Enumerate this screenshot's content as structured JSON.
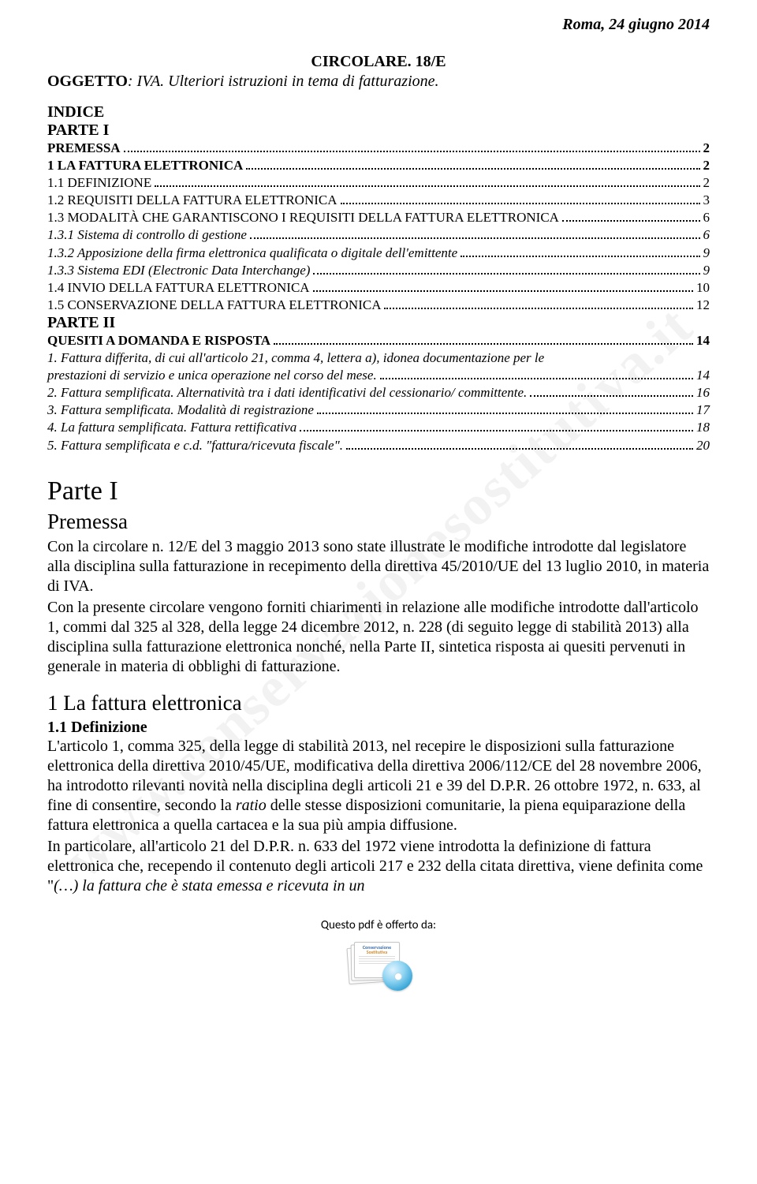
{
  "meta": {
    "date_line": "Roma, 24 giugno 2014",
    "circolare_title": "CIRCOLARE. 18/E",
    "oggetto_label": "OGGETTO",
    "oggetto_text": ": IVA. Ulteriori istruzioni in tema di fatturazione.",
    "watermark": "www.conservazionesostitutiva.it"
  },
  "indice": {
    "heading": "INDICE",
    "parte1_label": "PARTE I",
    "items_p1": [
      {
        "label": "PREMESSA",
        "page": "2",
        "style": "sc bold"
      },
      {
        "label": "1 LA FATTURA ELETTRONICA",
        "page": "2",
        "style": "sc bold"
      },
      {
        "label": "1.1 DEFINIZIONE",
        "page": "2",
        "style": "sc"
      },
      {
        "label": "1.2 REQUISITI DELLA FATTURA ELETTRONICA",
        "page": "3",
        "style": "sc"
      },
      {
        "label": "1.3 MODALITÀ CHE GARANTISCONO I REQUISITI DELLA FATTURA ELETTRONICA",
        "page": "6",
        "style": "sc"
      },
      {
        "label": "1.3.1 Sistema di controllo di gestione",
        "page": "6",
        "style": "italic"
      },
      {
        "label": "1.3.2 Apposizione della firma elettronica qualificata o digitale dell'emittente",
        "page": "9",
        "style": "italic"
      },
      {
        "label": "1.3.3 Sistema EDI (Electronic Data Interchange)",
        "page": "9",
        "style": "italic"
      },
      {
        "label": "1.4 INVIO DELLA FATTURA ELETTRONICA",
        "page": "10",
        "style": "sc"
      },
      {
        "label": "1.5 CONSERVAZIONE DELLA FATTURA ELETTRONICA",
        "page": "12",
        "style": "sc"
      }
    ],
    "parte2_label": "PARTE II",
    "items_p2_head": {
      "label": "QUESITI A DOMANDA E RISPOSTA",
      "page": "14",
      "style": "sc bold"
    },
    "items_p2": [
      {
        "label_line1": "1. Fattura differita, di cui all'articolo 21, comma 4, lettera a), idonea documentazione per le",
        "label_line2": "prestazioni di servizio e unica operazione nel corso del mese.",
        "page": "14",
        "style": "italic"
      },
      {
        "label": "2. Fattura semplificata. Alternatività tra i dati identificativi del cessionario/ committente.",
        "page": "16",
        "style": "italic"
      },
      {
        "label": "3. Fattura semplificata. Modalità di registrazione",
        "page": "17",
        "style": "italic"
      },
      {
        "label": "4. La fattura semplificata. Fattura rettificativa",
        "page": "18",
        "style": "italic"
      },
      {
        "label": "5. Fattura semplificata e c.d. \"fattura/ricevuta fiscale\".",
        "page": "20",
        "style": "italic"
      }
    ]
  },
  "body": {
    "parte1_title": "Parte I",
    "premessa_title": "Premessa",
    "premessa_paragraphs": [
      "Con la circolare n. 12/E del 3 maggio 2013 sono state illustrate le modifiche introdotte dal legislatore alla disciplina sulla fatturazione in recepimento della direttiva 45/2010/UE del 13 luglio 2010, in materia di IVA.",
      "Con la presente circolare vengono forniti chiarimenti in relazione alle modifiche introdotte dall'articolo 1, commi dal 325 al 328, della legge 24 dicembre 2012, n. 228 (di seguito legge di stabilità 2013) alla disciplina sulla fatturazione elettronica nonché, nella Parte II, sintetica risposta ai quesiti pervenuti in generale in materia di obblighi di fatturazione."
    ],
    "sec1_title": "1 La fattura elettronica",
    "sec11_title": "1.1 Definizione",
    "sec11_text_parts": {
      "p1": "L'articolo 1, comma 325, della legge di stabilità 2013, nel recepire le disposizioni sulla fatturazione elettronica della direttiva 2010/45/UE, modificativa della direttiva 2006/112/CE del 28 novembre 2006, ha introdotto rilevanti novità nella disciplina degli articoli 21 e 39 del D.P.R. 26 ottobre 1972, n. 633, al fine di consentire, secondo la ",
      "p1_italic": "ratio",
      "p1_tail": " delle stesse disposizioni comunitarie, la piena equiparazione della fattura elettronica a quella cartacea e la sua più ampia diffusione.",
      "p2": "In particolare, all'articolo 21 del D.P.R. n. 633 del 1972 viene introdotta la definizione di fattura elettronica che, recependo il contenuto degli articoli 217 e 232 della citata direttiva, viene definita come \"",
      "p2_italic": "(…) la fattura che è stata emessa e ricevuta in un"
    }
  },
  "footer": {
    "text": "Questo pdf è offerto da:",
    "card_line1": "Conservazione",
    "card_line2": "Sostitutiva"
  },
  "colors": {
    "text": "#000000",
    "watermark": "rgba(0,0,0,0.05)",
    "card_blue": "#3a6fb0",
    "card_orange": "#d08a2a"
  }
}
